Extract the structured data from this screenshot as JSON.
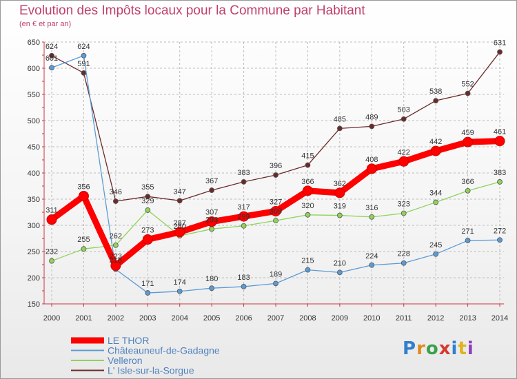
{
  "chart_data": {
    "type": "line",
    "title": "Evolution des Impôts locaux pour la Commune par Habitant",
    "subtitle": "(en € et par an)",
    "xlabel": "",
    "ylabel": "",
    "ylim": [
      150,
      650
    ],
    "yticks": [
      150,
      200,
      250,
      300,
      350,
      400,
      450,
      500,
      550,
      600,
      650
    ],
    "x": [
      "2000",
      "2001",
      "2002",
      "2003",
      "2004",
      "2005",
      "2006",
      "2007",
      "2008",
      "2009",
      "2010",
      "2011",
      "2012",
      "2013",
      "2014"
    ],
    "series": [
      {
        "name": "L' Isle-sur-la-Sorgue",
        "color": "#6b2a2a",
        "values": [
          624,
          591,
          346,
          355,
          347,
          367,
          383,
          396,
          415,
          485,
          489,
          503,
          538,
          552,
          631
        ]
      },
      {
        "name": "Châteauneuf-de-Gadagne",
        "color": "#5b9bd5",
        "values": [
          601,
          624,
          216,
          171,
          174,
          180,
          183,
          189,
          215,
          210,
          224,
          228,
          245,
          271,
          272
        ]
      },
      {
        "name": "Velleron",
        "color": "#8fd35a",
        "values": [
          232,
          255,
          262,
          329,
          280,
          293,
          299,
          309,
          320,
          319,
          316,
          323,
          344,
          366,
          383
        ]
      },
      {
        "name": "LE THOR",
        "color": "#ff0000",
        "values": [
          311,
          356,
          223,
          273,
          287,
          307,
          317,
          327,
          366,
          362,
          408,
          422,
          442,
          459,
          461
        ]
      }
    ],
    "legend_position": "bottom-left",
    "legend": [
      "LE THOR",
      "Châteauneuf-de-Gadagne",
      "Velleron",
      "L' Isle-sur-la-Sorgue"
    ]
  },
  "logo": {
    "letters": [
      "P",
      "r",
      "o",
      "x",
      "i",
      "t",
      "i"
    ]
  }
}
